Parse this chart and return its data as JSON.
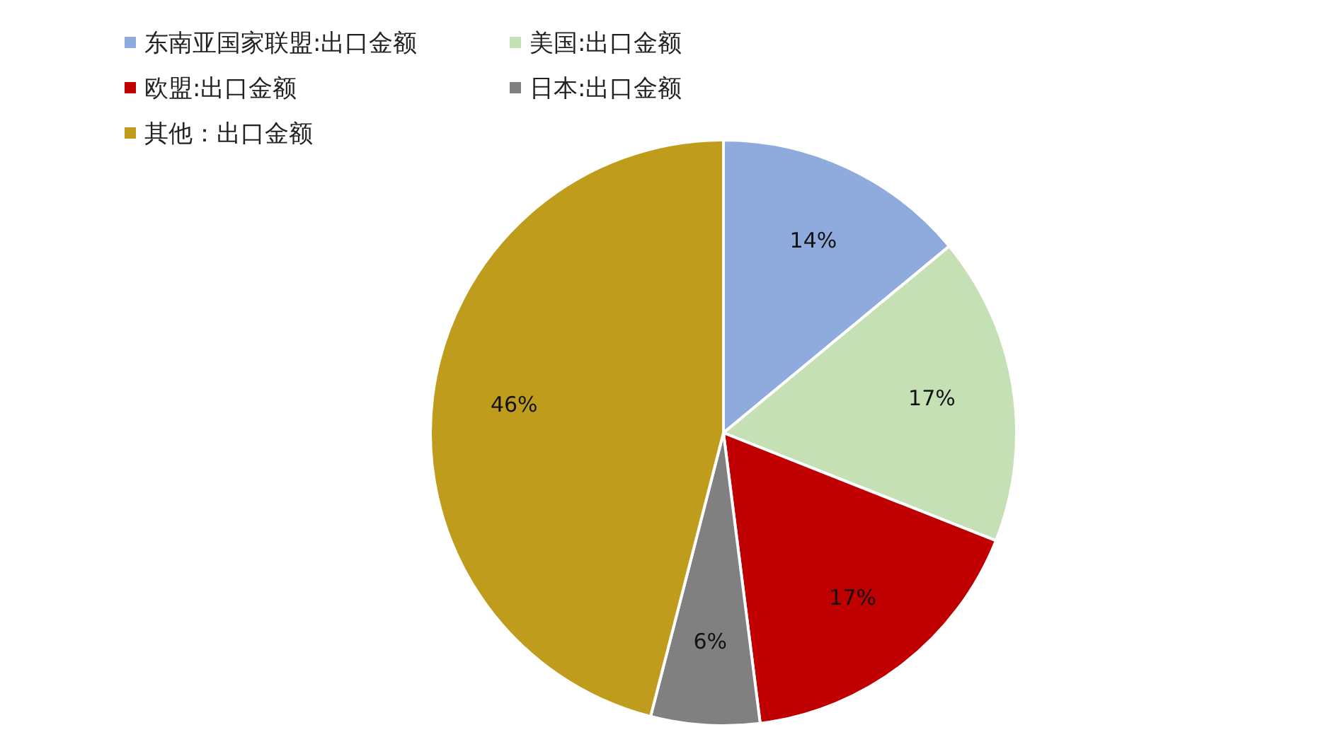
{
  "chart_data": {
    "type": "pie",
    "categories": [
      "东南亚国家联盟:出口金额",
      "美国:出口金额",
      "欧盟:出口金额",
      "日本:出口金额",
      "其他：出口金额"
    ],
    "values": [
      14,
      17,
      17,
      6,
      46
    ],
    "colors": [
      "#8faadc",
      "#c5e0b4",
      "#c00000",
      "#808080",
      "#c09c1d"
    ],
    "value_labels": [
      "14%",
      "17%",
      "17%",
      "6%",
      "46%"
    ],
    "legend": "top"
  }
}
